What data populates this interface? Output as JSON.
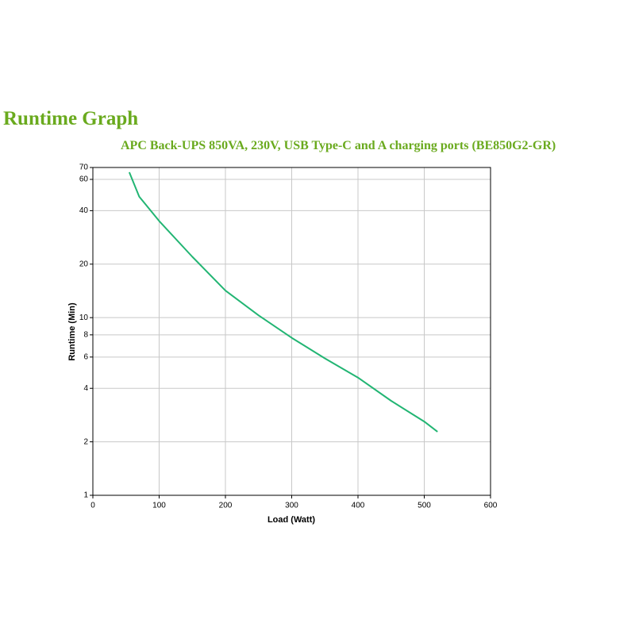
{
  "chart_data": {
    "type": "line",
    "title": "Runtime Graph",
    "subtitle": "APC Back-UPS 850VA, 230V, USB Type-C and A charging ports (BE850G2-GR)",
    "x_label": "Load (Watt)",
    "y_label": "Runtime (Min)",
    "x": [
      55,
      70,
      100,
      150,
      200,
      250,
      300,
      350,
      400,
      450,
      500,
      520
    ],
    "values": [
      65.8,
      48,
      35,
      22,
      14.2,
      10.3,
      7.7,
      5.9,
      4.6,
      3.4,
      2.6,
      2.28
    ],
    "color": "#22b573",
    "xlim": [
      0,
      600
    ],
    "xticks": [
      0,
      100,
      200,
      300,
      400,
      500,
      600
    ],
    "ylim": [
      1,
      70
    ],
    "yticks": [
      1,
      2,
      4,
      6,
      8,
      10,
      20,
      40,
      60,
      70
    ],
    "y_scale": "log",
    "grid": true
  }
}
